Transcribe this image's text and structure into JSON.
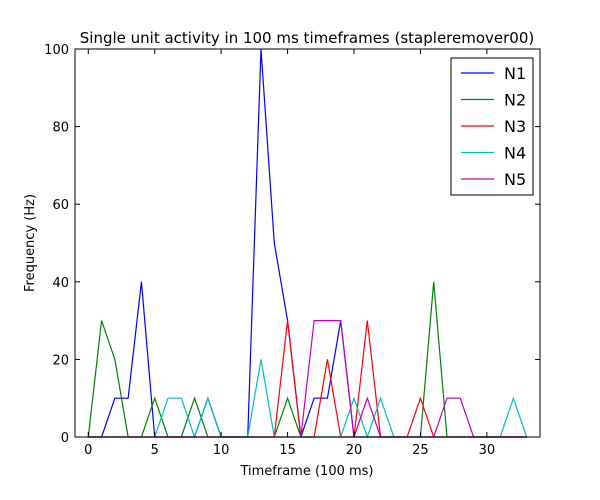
{
  "chart_data": {
    "type": "line",
    "title": "Single unit activity in 100 ms timeframes (stapleremover00)",
    "xlabel": "Timeframe (100 ms)",
    "ylabel": "Frequency (Hz)",
    "xlim": [
      -1,
      34
    ],
    "ylim": [
      0,
      100
    ],
    "xticks": [
      0,
      5,
      10,
      15,
      20,
      25,
      30
    ],
    "yticks": [
      0,
      20,
      40,
      60,
      80,
      100
    ],
    "grid": false,
    "legend_position": "top-right",
    "x": [
      0,
      1,
      2,
      3,
      4,
      5,
      6,
      7,
      8,
      9,
      10,
      11,
      12,
      13,
      14,
      15,
      16,
      17,
      18,
      19,
      20,
      21,
      22,
      23,
      24,
      25,
      26,
      27,
      28,
      29,
      30,
      31,
      32,
      33
    ],
    "series": [
      {
        "name": "N1",
        "color": "#0000ff",
        "values": [
          0,
          0,
          10,
          10,
          40,
          0,
          0,
          0,
          0,
          10,
          0,
          0,
          0,
          100,
          50,
          30,
          0,
          10,
          10,
          30,
          0,
          0,
          0,
          0,
          0,
          0,
          0,
          0,
          0,
          0,
          0,
          0,
          0,
          0
        ]
      },
      {
        "name": "N2",
        "color": "#008000",
        "values": [
          0,
          30,
          20,
          0,
          0,
          10,
          0,
          0,
          10,
          0,
          0,
          0,
          0,
          0,
          0,
          10,
          0,
          0,
          0,
          0,
          0,
          0,
          0,
          0,
          0,
          0,
          40,
          0,
          0,
          0,
          0,
          0,
          0,
          0
        ]
      },
      {
        "name": "N3",
        "color": "#ff0000",
        "values": [
          0,
          0,
          0,
          0,
          0,
          0,
          0,
          0,
          0,
          0,
          0,
          0,
          0,
          0,
          0,
          30,
          0,
          0,
          20,
          0,
          0,
          30,
          0,
          0,
          0,
          10,
          0,
          0,
          0,
          0,
          0,
          0,
          0,
          0
        ]
      },
      {
        "name": "N4",
        "color": "#00bfbf",
        "values": [
          0,
          0,
          0,
          0,
          0,
          0,
          10,
          10,
          0,
          10,
          0,
          0,
          0,
          20,
          0,
          0,
          0,
          0,
          0,
          0,
          10,
          0,
          10,
          0,
          0,
          0,
          0,
          0,
          0,
          0,
          0,
          0,
          10,
          0
        ]
      },
      {
        "name": "N5",
        "color": "#bf00bf",
        "values": [
          0,
          0,
          0,
          0,
          0,
          0,
          0,
          0,
          0,
          0,
          0,
          0,
          0,
          0,
          0,
          0,
          0,
          30,
          30,
          30,
          0,
          10,
          0,
          0,
          0,
          0,
          0,
          10,
          10,
          0,
          0,
          0,
          0,
          0
        ]
      }
    ]
  }
}
